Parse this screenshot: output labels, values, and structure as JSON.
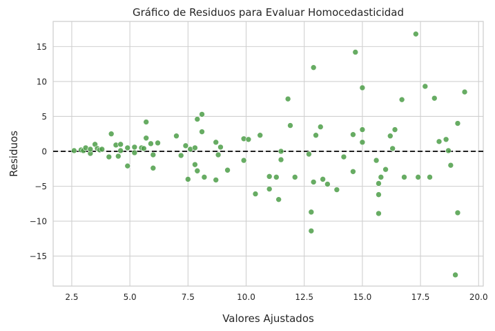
{
  "chart_data": {
    "type": "scatter",
    "title": "Gráfico de Residuos para Evaluar Homocedasticidad",
    "xlabel": "Valores Ajustados",
    "ylabel": "Residuos",
    "xlim": [
      1.7,
      20.2
    ],
    "ylim": [
      -19.3,
      18.6
    ],
    "xticks": [
      2.5,
      5.0,
      7.5,
      10.0,
      12.5,
      15.0,
      17.5,
      20.0
    ],
    "xtick_labels": [
      "2.5",
      "5.0",
      "7.5",
      "10.0",
      "12.5",
      "15.0",
      "17.5",
      "20.0"
    ],
    "yticks": [
      -15,
      -10,
      -5,
      0,
      5,
      10,
      15
    ],
    "ytick_labels": [
      "−15",
      "−10",
      "−5",
      "0",
      "5",
      "10",
      "15"
    ],
    "grid": true,
    "reference_line": {
      "y": 0,
      "style": "dashed",
      "color": "#000000"
    },
    "point_color": "#4c9e48",
    "points": [
      {
        "x": 2.6,
        "y": 0.1
      },
      {
        "x": 2.9,
        "y": 0.2
      },
      {
        "x": 3.0,
        "y": 0.1
      },
      {
        "x": 3.1,
        "y": 0.5
      },
      {
        "x": 3.3,
        "y": -0.3
      },
      {
        "x": 3.3,
        "y": 0.3
      },
      {
        "x": 3.5,
        "y": 1.0
      },
      {
        "x": 3.6,
        "y": 0.4
      },
      {
        "x": 3.7,
        "y": 0.2
      },
      {
        "x": 3.8,
        "y": 0.3
      },
      {
        "x": 4.1,
        "y": -0.8
      },
      {
        "x": 4.2,
        "y": 2.5
      },
      {
        "x": 4.4,
        "y": 0.9
      },
      {
        "x": 4.5,
        "y": -0.7
      },
      {
        "x": 4.6,
        "y": 1.0
      },
      {
        "x": 4.6,
        "y": 0.1
      },
      {
        "x": 4.9,
        "y": -2.1
      },
      {
        "x": 4.9,
        "y": 0.5
      },
      {
        "x": 5.2,
        "y": 0.6
      },
      {
        "x": 5.2,
        "y": -0.2
      },
      {
        "x": 5.5,
        "y": 0.5
      },
      {
        "x": 5.6,
        "y": 0.4
      },
      {
        "x": 5.7,
        "y": 1.9
      },
      {
        "x": 5.7,
        "y": 4.2
      },
      {
        "x": 5.9,
        "y": 1.1
      },
      {
        "x": 6.0,
        "y": -0.5
      },
      {
        "x": 6.0,
        "y": -2.4
      },
      {
        "x": 6.2,
        "y": 1.2
      },
      {
        "x": 7.0,
        "y": 2.2
      },
      {
        "x": 7.2,
        "y": -0.6
      },
      {
        "x": 7.4,
        "y": 0.8
      },
      {
        "x": 7.5,
        "y": -4.0
      },
      {
        "x": 7.6,
        "y": 0.3
      },
      {
        "x": 7.8,
        "y": 0.5
      },
      {
        "x": 7.8,
        "y": -1.9
      },
      {
        "x": 7.9,
        "y": 4.6
      },
      {
        "x": 7.9,
        "y": -2.8
      },
      {
        "x": 8.1,
        "y": 5.3
      },
      {
        "x": 8.1,
        "y": 2.8
      },
      {
        "x": 8.2,
        "y": -3.7
      },
      {
        "x": 8.7,
        "y": 1.3
      },
      {
        "x": 8.7,
        "y": -4.1
      },
      {
        "x": 8.8,
        "y": -0.5
      },
      {
        "x": 8.9,
        "y": 0.6
      },
      {
        "x": 9.2,
        "y": -2.7
      },
      {
        "x": 9.9,
        "y": 1.8
      },
      {
        "x": 9.9,
        "y": -1.3
      },
      {
        "x": 10.1,
        "y": 1.7
      },
      {
        "x": 10.4,
        "y": -6.1
      },
      {
        "x": 10.6,
        "y": 2.3
      },
      {
        "x": 11.0,
        "y": -3.6
      },
      {
        "x": 11.0,
        "y": -5.4
      },
      {
        "x": 11.3,
        "y": -3.7
      },
      {
        "x": 11.4,
        "y": -6.9
      },
      {
        "x": 11.5,
        "y": 0.0
      },
      {
        "x": 11.5,
        "y": -1.2
      },
      {
        "x": 11.8,
        "y": 7.5
      },
      {
        "x": 11.9,
        "y": 3.7
      },
      {
        "x": 12.1,
        "y": -3.7
      },
      {
        "x": 12.7,
        "y": -0.4
      },
      {
        "x": 12.8,
        "y": -8.7
      },
      {
        "x": 12.8,
        "y": -11.4
      },
      {
        "x": 12.9,
        "y": -4.4
      },
      {
        "x": 13.0,
        "y": 2.3
      },
      {
        "x": 12.9,
        "y": 12.0
      },
      {
        "x": 13.2,
        "y": 3.5
      },
      {
        "x": 13.3,
        "y": -4.0
      },
      {
        "x": 13.5,
        "y": -4.7
      },
      {
        "x": 13.9,
        "y": -5.5
      },
      {
        "x": 14.2,
        "y": -0.8
      },
      {
        "x": 14.6,
        "y": 2.4
      },
      {
        "x": 14.6,
        "y": -2.9
      },
      {
        "x": 14.7,
        "y": 14.2
      },
      {
        "x": 15.0,
        "y": 9.1
      },
      {
        "x": 15.0,
        "y": 3.1
      },
      {
        "x": 15.0,
        "y": 1.3
      },
      {
        "x": 15.6,
        "y": -1.3
      },
      {
        "x": 15.7,
        "y": -4.6
      },
      {
        "x": 15.7,
        "y": -6.2
      },
      {
        "x": 15.7,
        "y": -8.9
      },
      {
        "x": 15.8,
        "y": -3.7
      },
      {
        "x": 16.0,
        "y": -2.6
      },
      {
        "x": 16.2,
        "y": 2.2
      },
      {
        "x": 16.3,
        "y": 0.4
      },
      {
        "x": 16.4,
        "y": 3.1
      },
      {
        "x": 16.7,
        "y": 7.4
      },
      {
        "x": 16.8,
        "y": -3.7
      },
      {
        "x": 17.3,
        "y": 16.8
      },
      {
        "x": 17.4,
        "y": -3.7
      },
      {
        "x": 17.7,
        "y": 9.3
      },
      {
        "x": 17.9,
        "y": -3.7
      },
      {
        "x": 18.1,
        "y": 7.6
      },
      {
        "x": 18.3,
        "y": 1.4
      },
      {
        "x": 18.6,
        "y": 1.7
      },
      {
        "x": 18.7,
        "y": 0.1
      },
      {
        "x": 18.8,
        "y": -2.0
      },
      {
        "x": 19.0,
        "y": -17.7
      },
      {
        "x": 19.1,
        "y": 4.0
      },
      {
        "x": 19.1,
        "y": -8.8
      },
      {
        "x": 19.4,
        "y": 8.5
      }
    ]
  }
}
